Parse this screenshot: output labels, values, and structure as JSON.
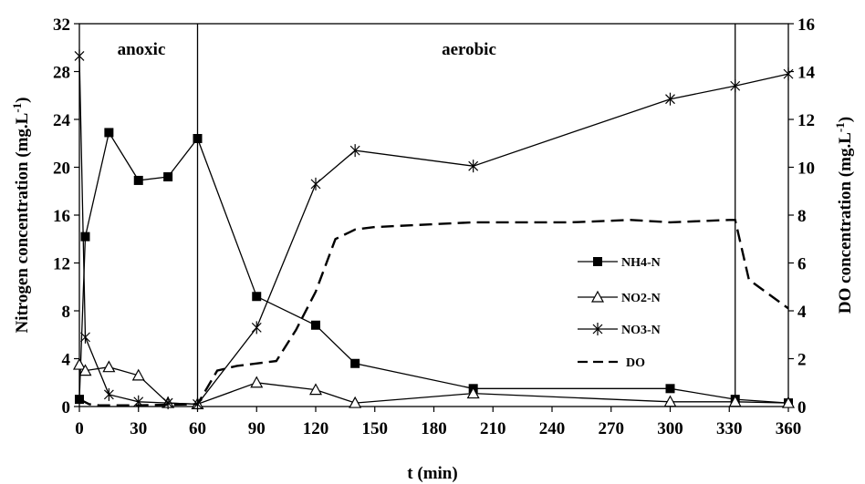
{
  "chart_data": {
    "type": "line",
    "xlabel": "t (min)",
    "ylabel": "Nitrogen concentration (mg.L",
    "ylabel_sup": "-1",
    "ylabel_end": ")",
    "y2label": "DO concentration (mg.L",
    "y2label_sup": "-1",
    "y2label_end": ")",
    "xlim": [
      0,
      360
    ],
    "ylim": [
      0,
      32
    ],
    "y2lim": [
      0,
      16
    ],
    "xticks": [
      0,
      30,
      60,
      90,
      120,
      150,
      180,
      210,
      240,
      270,
      300,
      330,
      360
    ],
    "yticks": [
      0,
      4,
      8,
      12,
      16,
      20,
      24,
      28,
      32
    ],
    "y2ticks": [
      0,
      2,
      4,
      6,
      8,
      10,
      12,
      14,
      16
    ],
    "phases": [
      {
        "label": "anoxic"
      },
      {
        "label": "aerobic"
      }
    ],
    "phase_dividers": [
      60,
      333
    ],
    "legend_position": "right",
    "series": [
      {
        "name": "NH4-N",
        "axis": "left",
        "marker": "square",
        "x": [
          0,
          3,
          15,
          30,
          45,
          60,
          90,
          120,
          140,
          200,
          300,
          333,
          360
        ],
        "y": [
          0.6,
          14.2,
          22.9,
          18.9,
          19.2,
          22.4,
          9.2,
          6.8,
          3.6,
          1.5,
          1.5,
          0.6,
          0.3
        ]
      },
      {
        "name": "NO2-N",
        "axis": "left",
        "marker": "triangle",
        "x": [
          0,
          3,
          15,
          30,
          45,
          60,
          90,
          120,
          140,
          200,
          300,
          333,
          360
        ],
        "y": [
          3.5,
          3.0,
          3.3,
          2.6,
          0.3,
          0.2,
          2.0,
          1.4,
          0.3,
          1.1,
          0.4,
          0.4,
          0.3
        ]
      },
      {
        "name": "NO3-N",
        "axis": "left",
        "marker": "star",
        "x": [
          0,
          3,
          15,
          30,
          45,
          60,
          90,
          120,
          140,
          200,
          300,
          333,
          360
        ],
        "y": [
          29.3,
          5.8,
          1.0,
          0.4,
          0.3,
          0.2,
          6.6,
          18.6,
          21.4,
          20.1,
          25.7,
          26.8,
          27.8
        ]
      },
      {
        "name": "DO",
        "axis": "right",
        "marker": "none",
        "dashed": true,
        "x": [
          0,
          5,
          10,
          30,
          60,
          70,
          80,
          100,
          110,
          120,
          130,
          140,
          150,
          200,
          250,
          280,
          300,
          330,
          333,
          340,
          360
        ],
        "y": [
          0.3,
          0.1,
          0.05,
          0.05,
          0.1,
          1.5,
          1.7,
          1.9,
          3.2,
          4.8,
          7.0,
          7.4,
          7.5,
          7.7,
          7.7,
          7.8,
          7.7,
          7.8,
          7.8,
          5.3,
          4.1
        ]
      }
    ]
  }
}
